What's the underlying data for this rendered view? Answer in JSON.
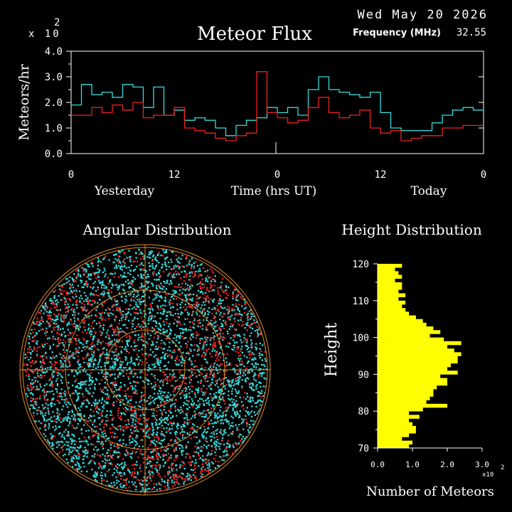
{
  "header": {
    "date": "Wed May 20 2026",
    "frequency_label": "Frequency (MHz)",
    "frequency_value": "32.55"
  },
  "chart_data": [
    {
      "type": "line",
      "title": "Meteor Flux",
      "ylabel": "Meteors/hr",
      "xlabel": "Time (hrs UT)",
      "y_scale_note": "x10^2",
      "ylim": [
        0,
        4.0
      ],
      "y_ticks": [
        "0.0",
        "1.0",
        "2.0",
        "3.0",
        "4.0"
      ],
      "x_ticks": [
        "0",
        "12",
        "0",
        "12",
        "0"
      ],
      "x_day_labels": [
        "Yesterday",
        "Today"
      ],
      "x_hours_range": [
        0,
        48
      ],
      "series": [
        {
          "color": "#33dddd",
          "values": [
            1.9,
            2.7,
            2.3,
            2.4,
            2.2,
            2.7,
            2.6,
            1.8,
            2.6,
            1.5,
            1.7,
            1.3,
            1.4,
            1.3,
            1.0,
            0.7,
            1.1,
            1.3,
            1.4,
            1.8,
            1.6,
            1.8,
            1.5,
            2.5,
            3.0,
            2.5,
            2.4,
            2.3,
            2.2,
            2.4,
            1.6,
            1.0,
            0.9,
            0.9,
            0.9,
            1.2,
            1.5,
            1.7,
            1.8,
            1.7
          ]
        },
        {
          "color": "#ee2222",
          "values": [
            1.5,
            1.5,
            1.8,
            1.6,
            1.9,
            1.7,
            2.0,
            1.4,
            1.5,
            1.5,
            1.8,
            1.0,
            0.9,
            0.8,
            0.6,
            0.5,
            0.7,
            0.8,
            3.2,
            1.6,
            1.4,
            1.2,
            1.3,
            1.8,
            2.2,
            1.6,
            1.4,
            1.5,
            1.7,
            1.0,
            0.8,
            0.9,
            0.5,
            0.6,
            0.7,
            0.7,
            1.0,
            1.0,
            1.1,
            1.1
          ]
        }
      ]
    },
    {
      "type": "scatter",
      "title": "Angular Distribution"
    },
    {
      "type": "bar",
      "title": "Height Distribution",
      "xlabel": "Number of Meteors",
      "ylabel": "Height",
      "x_scale_note": "x10^2",
      "xlim": [
        0,
        3.0
      ],
      "x_ticks": [
        "0.0",
        "1.0",
        "2.0",
        "3.0"
      ],
      "ylim": [
        70,
        120
      ],
      "y_ticks": [
        "70",
        "80",
        "90",
        "100",
        "110",
        "120"
      ],
      "bin_km": 1,
      "heights_start": 70,
      "values": [
        0.9,
        1.0,
        0.7,
        0.9,
        1.1,
        1.1,
        1.0,
        0.9,
        1.2,
        0.9,
        1.3,
        2.0,
        1.4,
        1.5,
        1.6,
        1.6,
        1.7,
        2.0,
        2.0,
        1.8,
        2.3,
        2.0,
        2.1,
        2.3,
        2.3,
        2.4,
        2.2,
        2.0,
        2.4,
        1.9,
        1.5,
        1.8,
        1.6,
        1.4,
        1.3,
        1.1,
        0.9,
        0.8,
        0.7,
        0.8,
        0.6,
        0.8,
        0.6,
        0.7,
        0.7,
        0.5,
        0.7,
        0.6,
        0.5,
        0.7
      ]
    }
  ],
  "scale_exponent": "2",
  "scale_prefix": "x 10",
  "tiny_scale": "x10"
}
